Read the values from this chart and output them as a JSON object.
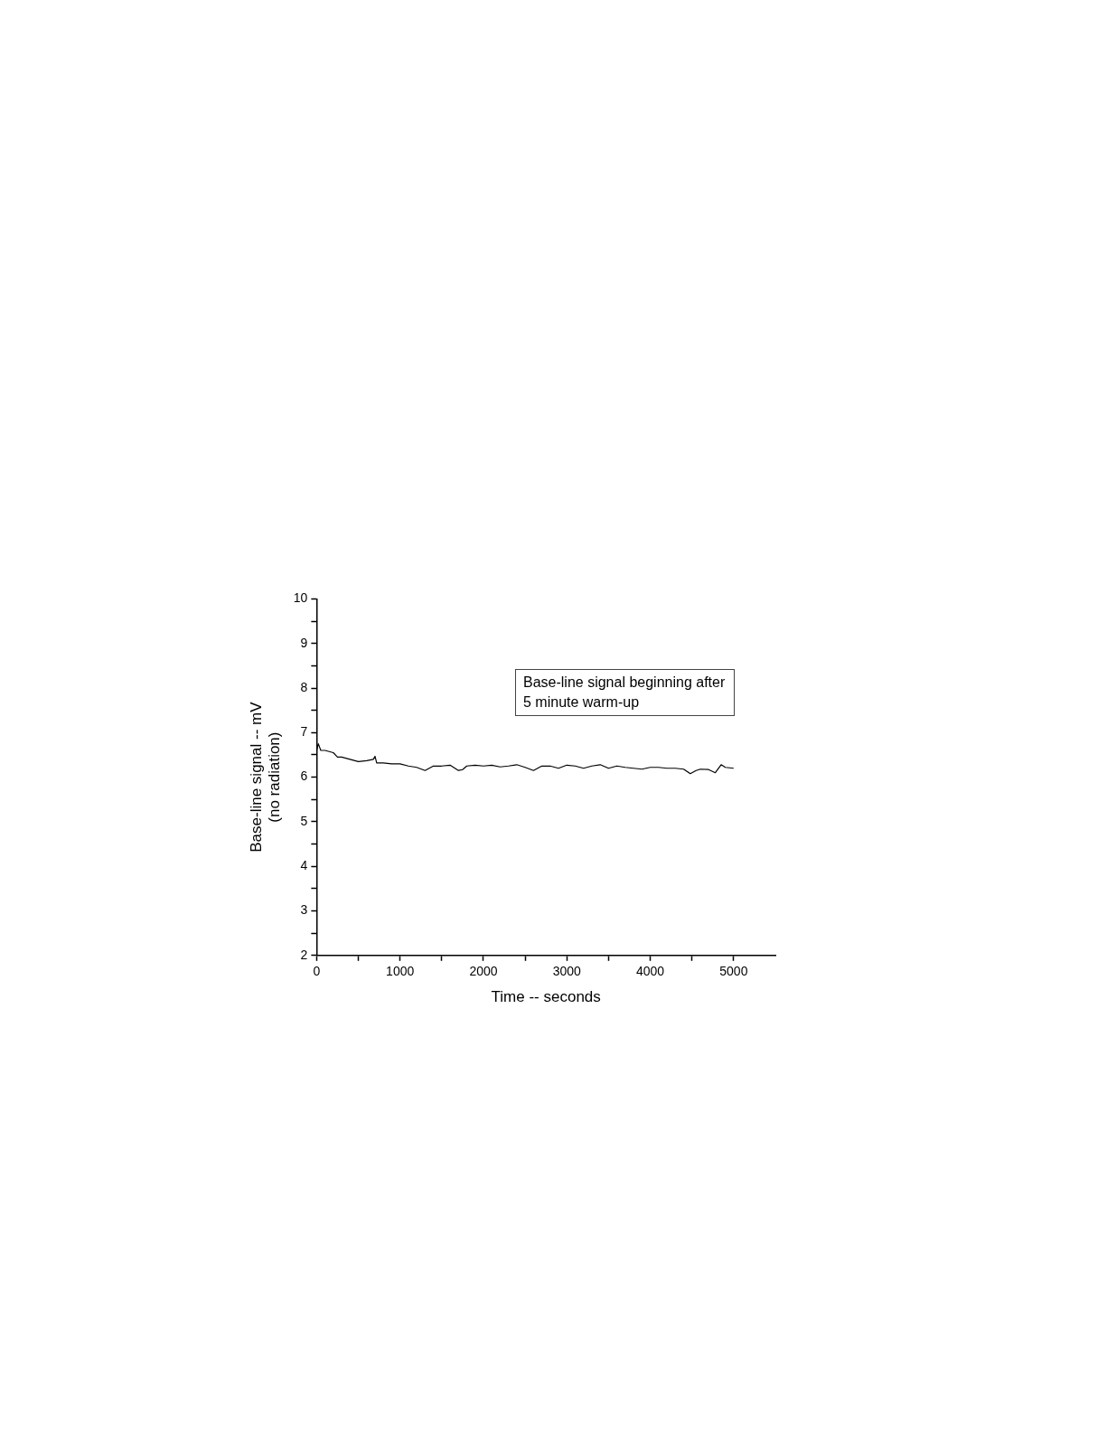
{
  "chart_data": {
    "type": "line",
    "xlabel": "Time -- seconds",
    "ylabel": "Base-line signal -- mV\n(no radiation)",
    "annotations": [
      "Base-line signal beginning after 5 minute warm-up"
    ],
    "xlim": [
      0,
      5500
    ],
    "xticks": [
      0,
      {
        "value": 500,
        "label": null
      },
      1000,
      {
        "value": 1500,
        "label": null
      },
      2000,
      {
        "value": 2500,
        "label": null
      },
      3000,
      {
        "value": 3500,
        "label": null
      },
      4000,
      {
        "value": 4500,
        "label": null
      },
      5000
    ],
    "ylim": [
      2,
      10
    ],
    "yticks": [
      2,
      {
        "value": 2.5,
        "label": null
      },
      3,
      {
        "value": 3.5,
        "label": null
      },
      4,
      {
        "value": 4.5,
        "label": null
      },
      5,
      {
        "value": 5.5,
        "label": null
      },
      6,
      {
        "value": 6.5,
        "label": null
      },
      7,
      {
        "value": 7.5,
        "label": null
      },
      8,
      {
        "value": 8.5,
        "label": null
      },
      9,
      {
        "value": 9.5,
        "label": null
      },
      10
    ],
    "grid": false,
    "legend": false,
    "marker": "none",
    "line_style": "solid",
    "series": [
      {
        "color": "#000000",
        "x": [
          0,
          20,
          50,
          100,
          200,
          250,
          300,
          400,
          500,
          600,
          680,
          700,
          720,
          800,
          900,
          1000,
          1100,
          1200,
          1300,
          1400,
          1500,
          1600,
          1700,
          1750,
          1800,
          1900,
          2000,
          2100,
          2200,
          2300,
          2400,
          2500,
          2600,
          2700,
          2800,
          2900,
          3000,
          3100,
          3200,
          3300,
          3400,
          3500,
          3600,
          3700,
          3800,
          3900,
          4000,
          4100,
          4200,
          4300,
          4400,
          4480,
          4550,
          4600,
          4700,
          4780,
          4850,
          4900,
          5000
        ],
        "values": [
          6.6,
          6.75,
          6.6,
          6.6,
          6.55,
          6.45,
          6.45,
          6.4,
          6.35,
          6.37,
          6.4,
          6.47,
          6.32,
          6.32,
          6.3,
          6.3,
          6.25,
          6.22,
          6.15,
          6.25,
          6.25,
          6.27,
          6.15,
          6.17,
          6.25,
          6.27,
          6.25,
          6.27,
          6.23,
          6.25,
          6.28,
          6.22,
          6.15,
          6.25,
          6.25,
          6.2,
          6.27,
          6.25,
          6.2,
          6.25,
          6.28,
          6.2,
          6.25,
          6.22,
          6.2,
          6.18,
          6.22,
          6.22,
          6.2,
          6.2,
          6.18,
          6.08,
          6.15,
          6.18,
          6.17,
          6.1,
          6.28,
          6.22,
          6.2
        ]
      }
    ]
  }
}
